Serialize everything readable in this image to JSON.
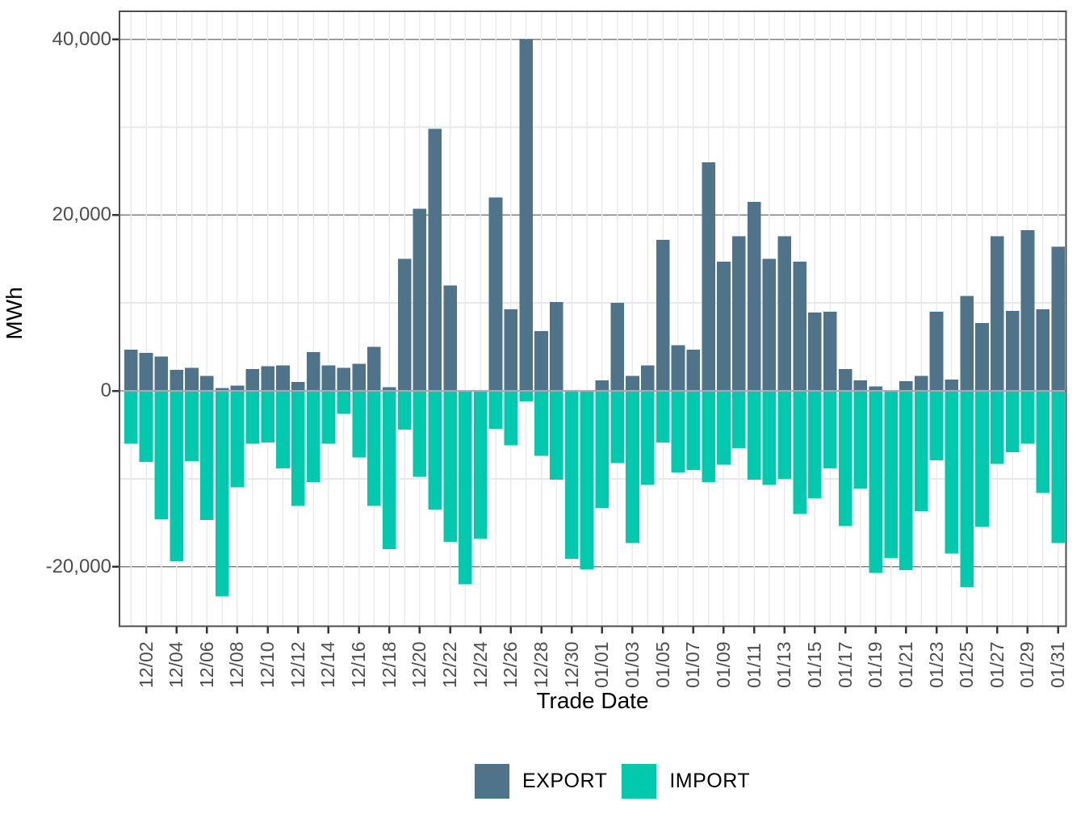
{
  "figure": {
    "y_axis_title": "MWh",
    "x_axis_title": "Trade Date"
  },
  "legend": {
    "position": "bottom",
    "items": [
      {
        "label": "EXPORT",
        "color": "#4F7489"
      },
      {
        "label": "IMPORT",
        "color": "#00C9AD"
      }
    ]
  },
  "colors": {
    "export_bar": "#4F7489",
    "import_bar": "#00C9AD",
    "major_gridline": "#808080",
    "minor_gridline": "#e8e8e8",
    "vertical_gridline": "#ebebeb",
    "zero_line": "#aaaaaa",
    "panel_border": "#4d4d4d",
    "tick_mark": "#333333",
    "tick_text": "#4d4d4d",
    "background": "#ffffff"
  },
  "chart_data": {
    "type": "bar",
    "title": "",
    "xlabel": "Trade Date",
    "ylabel": "MWh",
    "ylim": [
      -26600,
      43200
    ],
    "grid": "horizontal major dark gray at 20000 intervals, minor light at 10000 intervals, light vertical per day",
    "legend_position": "bottom-center",
    "y_major_ticks": [
      {
        "value": 40000,
        "label": "40,000"
      },
      {
        "value": 20000,
        "label": "20,000"
      },
      {
        "value": 0,
        "label": "0"
      },
      {
        "value": -20000,
        "label": "-20,000"
      }
    ],
    "y_minor_ticks": [
      30000,
      10000,
      -10000
    ],
    "x_tick_labels": [
      "12/02",
      "12/04",
      "12/06",
      "12/08",
      "12/10",
      "12/12",
      "12/14",
      "12/16",
      "12/18",
      "12/20",
      "12/22",
      "12/24",
      "12/26",
      "12/28",
      "12/30",
      "01/01",
      "01/03",
      "01/05",
      "01/07",
      "01/09",
      "01/11",
      "01/13",
      "01/15",
      "01/17",
      "01/19",
      "01/21",
      "01/23",
      "01/25",
      "01/27",
      "01/29",
      "01/31"
    ],
    "categories": [
      "12/01",
      "12/02",
      "12/03",
      "12/04",
      "12/05",
      "12/06",
      "12/07",
      "12/08",
      "12/09",
      "12/10",
      "12/11",
      "12/12",
      "12/13",
      "12/14",
      "12/15",
      "12/16",
      "12/17",
      "12/18",
      "12/19",
      "12/20",
      "12/21",
      "12/22",
      "12/23",
      "12/24",
      "12/25",
      "12/26",
      "12/27",
      "12/28",
      "12/29",
      "12/30",
      "12/31",
      "01/01",
      "01/02",
      "01/03",
      "01/04",
      "01/05",
      "01/06",
      "01/07",
      "01/08",
      "01/09",
      "01/10",
      "01/11",
      "01/12",
      "01/13",
      "01/14",
      "01/15",
      "01/16",
      "01/17",
      "01/18",
      "01/19",
      "01/20",
      "01/21",
      "01/22",
      "01/23",
      "01/24",
      "01/25",
      "01/26",
      "01/27",
      "01/28",
      "01/29",
      "01/30",
      "01/31"
    ],
    "series": [
      {
        "name": "EXPORT",
        "color": "#4F7489",
        "values": [
          4700,
          4300,
          3900,
          2400,
          2600,
          1700,
          300,
          600,
          2500,
          2800,
          2900,
          1000,
          4400,
          2900,
          2600,
          3100,
          5000,
          400,
          15000,
          20700,
          29800,
          12000,
          0,
          0,
          22000,
          9300,
          40000,
          6800,
          10100,
          100,
          0,
          1200,
          10000,
          1700,
          2900,
          17200,
          5200,
          4700,
          26000,
          14700,
          17600,
          21500,
          15000,
          17600,
          14700,
          8900,
          9000,
          2500,
          1200,
          500,
          100,
          1100,
          1700,
          9000,
          1300,
          10800,
          7700,
          17600,
          9100,
          18300,
          9300,
          16400
        ]
      },
      {
        "name": "IMPORT",
        "color": "#00C9AD",
        "values": [
          -6000,
          -8100,
          -14600,
          -19400,
          -8000,
          -14700,
          -23400,
          -11000,
          -6000,
          -5900,
          -8800,
          -13100,
          -10400,
          -6000,
          -2600,
          -7600,
          -13100,
          -18000,
          -4400,
          -9800,
          -13500,
          -17200,
          -22000,
          -16800,
          -4300,
          -6200,
          -1200,
          -7400,
          -10100,
          -19100,
          -20300,
          -13300,
          -8200,
          -17300,
          -10700,
          -5900,
          -9300,
          -9000,
          -10400,
          -8400,
          -6500,
          -10100,
          -10700,
          -10000,
          -14000,
          -12200,
          -8800,
          -15400,
          -11100,
          -20700,
          -19000,
          -20400,
          -13700,
          -7900,
          -18500,
          -22300,
          -15500,
          -8300,
          -7000,
          -6000,
          -11600,
          -17300
        ]
      }
    ]
  }
}
